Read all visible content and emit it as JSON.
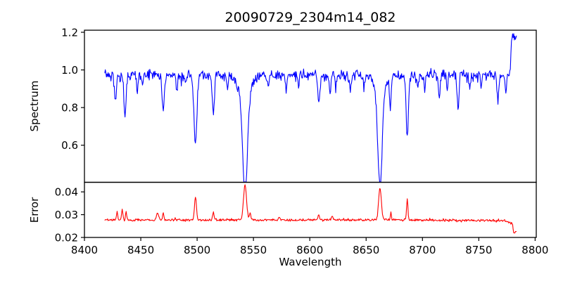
{
  "figure": {
    "background": "#ffffff"
  },
  "colors": {
    "spectrum_line": "#0000ff",
    "error_line": "#ff0000",
    "axis": "#000000"
  },
  "chart_data": {
    "type": "line",
    "title": "20090729_2304m14_082",
    "xlabel": "Wavelength",
    "grid": false,
    "legend": null,
    "xlim": [
      8400,
      8801
    ],
    "xticks": [
      8400,
      8450,
      8500,
      8550,
      8600,
      8650,
      8700,
      8750,
      8800
    ],
    "x_start": 8418,
    "x_end": 8783.5,
    "x_step": 0.5,
    "subplots": [
      {
        "name": "spectrum",
        "ylabel": "Spectrum",
        "color_key": "spectrum_line",
        "ylim": [
          0.403,
          1.211
        ],
        "yticks": [
          0.6,
          0.8,
          1.0,
          1.2
        ],
        "tick_decimals": 1,
        "continuum": 0.985,
        "noise_sigma": 0.01,
        "absorption_bias": 0.018,
        "absorption_lines": [
          [
            8427.5,
            0.845,
            0.8
          ],
          [
            8436.0,
            0.76,
            0.9
          ],
          [
            8447.0,
            0.9,
            0.7
          ],
          [
            8451.5,
            0.92,
            0.6
          ],
          [
            8470.0,
            0.79,
            0.9
          ],
          [
            8482.0,
            0.915,
            0.7
          ],
          [
            8490.0,
            0.93,
            0.6
          ],
          [
            8498.5,
            0.615,
            1.3
          ],
          [
            8514.5,
            0.775,
            0.9
          ],
          [
            8527.0,
            0.915,
            0.7
          ],
          [
            8542.5,
            0.44,
            2.1
          ],
          [
            8563.0,
            0.93,
            0.7
          ],
          [
            8579.0,
            0.91,
            0.7
          ],
          [
            8590.0,
            0.93,
            0.6
          ],
          [
            8608.0,
            0.85,
            0.9
          ],
          [
            8618.0,
            0.88,
            0.7
          ],
          [
            8623.0,
            0.9,
            0.6
          ],
          [
            8636.0,
            0.91,
            0.6
          ],
          [
            8648.0,
            0.925,
            0.6
          ],
          [
            8662.3,
            0.49,
            1.9
          ],
          [
            8671.5,
            0.82,
            0.7
          ],
          [
            8686.5,
            0.645,
            1.0
          ],
          [
            8696.0,
            0.91,
            0.6
          ],
          [
            8702.0,
            0.92,
            0.6
          ],
          [
            8715.0,
            0.875,
            0.8
          ],
          [
            8722.0,
            0.91,
            0.6
          ],
          [
            8731.5,
            0.81,
            0.8
          ],
          [
            8742.0,
            0.92,
            0.6
          ],
          [
            8752.0,
            0.92,
            0.6
          ],
          [
            8767.0,
            0.84,
            0.8
          ],
          [
            8774.0,
            0.9,
            0.6
          ]
        ],
        "broad_wings": [
          [
            8542.5,
            0.89,
            5.5
          ],
          [
            8662.3,
            0.9,
            5.0
          ]
        ],
        "end_spike": {
          "start": 8778.3,
          "level": 1.15,
          "peak": 1.185,
          "peak_center": 8780.3,
          "peak_sigma": 1.0
        }
      },
      {
        "name": "error",
        "ylabel": "Error",
        "color_key": "error_line",
        "ylim": [
          0.02,
          0.0442
        ],
        "yticks": [
          0.02,
          0.03,
          0.04
        ],
        "tick_decimals": 2,
        "baseline": 0.0274,
        "noise_sigma": 0.00022,
        "noise_bias": 0.00035,
        "peaks": [
          [
            8429.0,
            0.0312,
            0.6
          ],
          [
            8433.5,
            0.032,
            0.6
          ],
          [
            8437.0,
            0.0312,
            0.5
          ],
          [
            8465.0,
            0.0306,
            0.9
          ],
          [
            8470.0,
            0.0302,
            0.6
          ],
          [
            8498.5,
            0.0372,
            0.9
          ],
          [
            8514.5,
            0.0311,
            0.6
          ],
          [
            8542.5,
            0.043,
            1.3
          ],
          [
            8547.0,
            0.0307,
            0.7
          ],
          [
            8573.0,
            0.029,
            0.7
          ],
          [
            8608.0,
            0.0292,
            0.8
          ],
          [
            8620.0,
            0.0292,
            0.5
          ],
          [
            8662.3,
            0.0417,
            1.2
          ],
          [
            8672.0,
            0.0311,
            0.45
          ],
          [
            8686.5,
            0.0367,
            0.6
          ]
        ],
        "late_slope_start": 8690,
        "late_slope_per_unit": 3.5e-06,
        "end_drop": {
          "slump_start": 8776,
          "slump_amount": 0.0012,
          "start": 8780.4,
          "level": 0.0219,
          "hook": 0.0226
        }
      }
    ]
  }
}
